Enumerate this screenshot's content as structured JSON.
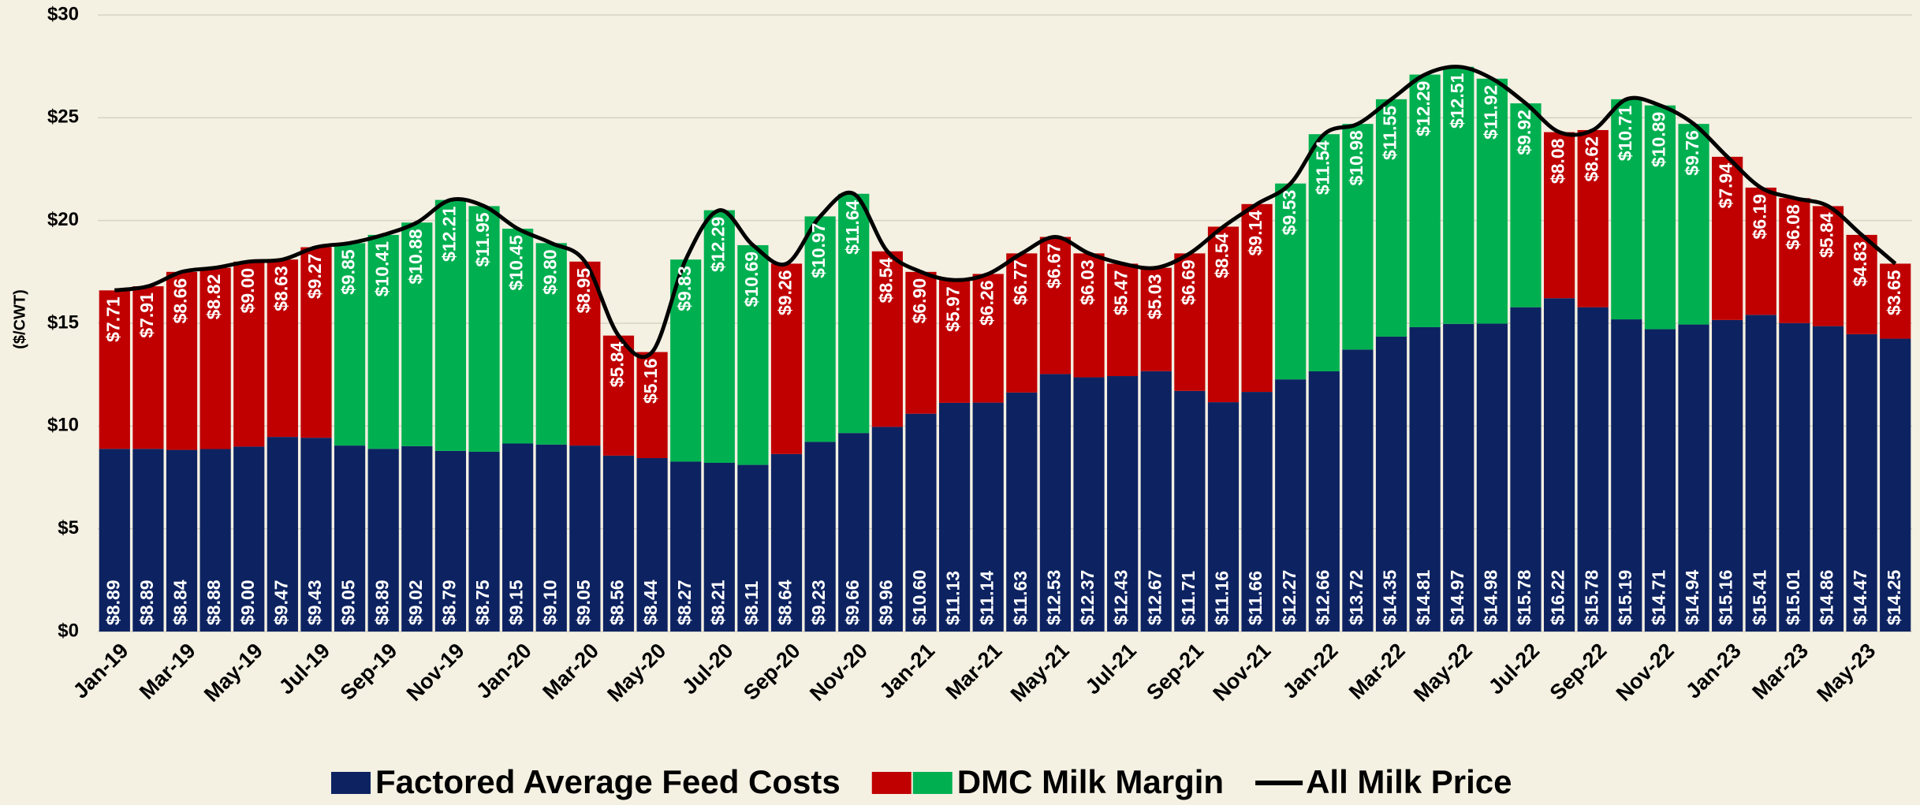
{
  "chart_data": {
    "type": "stacked_bar_line",
    "y_axis_label": "($/CWT)",
    "categories": [
      "Jan-19",
      null,
      "Mar-19",
      null,
      "May-19",
      null,
      "Jul-19",
      null,
      "Sep-19",
      null,
      "Nov-19",
      null,
      "Jan-20",
      null,
      "Mar-20",
      null,
      "May-20",
      null,
      "Jul-20",
      null,
      "Sep-20",
      null,
      "Nov-20",
      null,
      "Jan-21",
      null,
      "Mar-21",
      null,
      "May-21",
      null,
      "Jul-21",
      null,
      "Sep-21",
      null,
      "Nov-21",
      null,
      "Jan-22",
      null,
      "Mar-22",
      null,
      "May-22",
      null,
      "Jul-22",
      null,
      "Sep-22",
      null,
      "Nov-22",
      null,
      "Jan-23",
      null,
      "Mar-23",
      null,
      "May-23",
      null
    ],
    "ylim": [
      0,
      30
    ],
    "yticks": [
      {
        "value": 0,
        "label": "$0"
      },
      {
        "value": 5,
        "label": "$5"
      },
      {
        "value": 10,
        "label": "$10"
      },
      {
        "value": 15,
        "label": "$15"
      },
      {
        "value": 20,
        "label": "$20"
      },
      {
        "value": 25,
        "label": "$25"
      },
      {
        "value": 30,
        "label": "$30"
      }
    ],
    "grid": true,
    "series": [
      {
        "name": "Factored Average Feed Costs",
        "color": "#0d2361",
        "values": [
          8.89,
          8.89,
          8.84,
          8.88,
          9.0,
          9.47,
          9.43,
          9.05,
          8.89,
          9.02,
          8.79,
          8.75,
          9.15,
          9.1,
          9.05,
          8.56,
          8.44,
          8.27,
          8.21,
          8.11,
          8.64,
          9.23,
          9.66,
          9.96,
          10.6,
          11.13,
          11.14,
          11.63,
          12.53,
          12.37,
          12.43,
          12.67,
          11.71,
          11.16,
          11.66,
          12.27,
          12.66,
          13.72,
          14.35,
          14.81,
          14.97,
          14.98,
          15.78,
          16.22,
          15.78,
          15.19,
          14.71,
          14.94,
          15.16,
          15.41,
          15.01,
          14.86,
          14.47,
          14.25
        ],
        "value_labels": [
          "$8.89",
          "$8.89",
          "$8.84",
          "$8.88",
          "$9.00",
          "$9.47",
          "$9.43",
          "$9.05",
          "$8.89",
          "$9.02",
          "$8.79",
          "$8.75",
          "$9.15",
          "$9.10",
          "$9.05",
          "$8.56",
          "$8.44",
          "$8.27",
          "$8.21",
          "$8.11",
          "$8.64",
          "$9.23",
          "$9.66",
          "$9.96",
          "$10.60",
          "$11.13",
          "$11.14",
          "$11.63",
          "$12.53",
          "$12.37",
          "$12.43",
          "$12.67",
          "$11.71",
          "$11.16",
          "$11.66",
          "$12.27",
          "$12.66",
          "$13.72",
          "$14.35",
          "$14.81",
          "$14.97",
          "$14.98",
          "$15.78",
          "$16.22",
          "$15.78",
          "$15.19",
          "$14.71",
          "$14.94",
          "$15.16",
          "$15.41",
          "$15.01",
          "$14.86",
          "$14.47",
          "$14.25"
        ]
      },
      {
        "name": "DMC Milk Margin",
        "legend_colors": [
          "#c00000",
          "#00b050"
        ],
        "colors": [
          "#c00000",
          "#c00000",
          "#c00000",
          "#c00000",
          "#c00000",
          "#c00000",
          "#c00000",
          "#00b050",
          "#00b050",
          "#00b050",
          "#00b050",
          "#00b050",
          "#00b050",
          "#00b050",
          "#c00000",
          "#c00000",
          "#c00000",
          "#00b050",
          "#00b050",
          "#00b050",
          "#c00000",
          "#00b050",
          "#00b050",
          "#c00000",
          "#c00000",
          "#c00000",
          "#c00000",
          "#c00000",
          "#c00000",
          "#c00000",
          "#c00000",
          "#c00000",
          "#c00000",
          "#c00000",
          "#c00000",
          "#00b050",
          "#00b050",
          "#00b050",
          "#00b050",
          "#00b050",
          "#00b050",
          "#00b050",
          "#00b050",
          "#c00000",
          "#c00000",
          "#00b050",
          "#00b050",
          "#00b050",
          "#c00000",
          "#c00000",
          "#c00000",
          "#c00000",
          "#c00000",
          "#c00000"
        ],
        "values": [
          7.71,
          7.91,
          8.66,
          8.82,
          9.0,
          8.63,
          9.27,
          9.85,
          10.41,
          10.88,
          12.21,
          11.95,
          10.45,
          9.8,
          8.95,
          5.84,
          5.16,
          9.83,
          12.29,
          10.69,
          9.26,
          10.97,
          11.64,
          8.54,
          6.9,
          5.97,
          6.26,
          6.77,
          6.67,
          6.03,
          5.47,
          5.03,
          6.69,
          8.54,
          9.14,
          9.53,
          11.54,
          10.98,
          11.55,
          12.29,
          12.51,
          11.92,
          9.92,
          8.08,
          8.62,
          10.71,
          10.89,
          9.76,
          7.94,
          6.19,
          6.08,
          5.84,
          4.83,
          3.65
        ],
        "value_labels": [
          "$7.71",
          "$7.91",
          "$8.66",
          "$8.82",
          "$9.00",
          "$8.63",
          "$9.27",
          "$9.85",
          "$10.41",
          "$10.88",
          "$12.21",
          "$11.95",
          "$10.45",
          "$9.80",
          "$8.95",
          "$5.84",
          "$5.16",
          "$9.83",
          "$12.29",
          "$10.69",
          "$9.26",
          "$10.97",
          "$11.64",
          "$8.54",
          "$6.90",
          "$5.97",
          "$6.26",
          "$6.77",
          "$6.67",
          "$6.03",
          "$5.47",
          "$5.03",
          "$6.69",
          "$8.54",
          "$9.14",
          "$9.53",
          "$11.54",
          "$10.98",
          "$11.55",
          "$12.29",
          "$12.51",
          "$11.92",
          "$9.92",
          "$8.08",
          "$8.62",
          "$10.71",
          "$10.89",
          "$9.76",
          "$7.94",
          "$6.19",
          "$6.08",
          "$5.84",
          "$4.83",
          "$3.65"
        ]
      },
      {
        "name": "All Milk Price",
        "type": "line",
        "color": "#000000",
        "values": [
          16.6,
          16.8,
          17.5,
          17.7,
          18.0,
          18.1,
          18.7,
          18.9,
          19.3,
          19.9,
          21.0,
          20.7,
          19.6,
          18.9,
          18.0,
          14.4,
          13.6,
          18.1,
          20.5,
          18.8,
          17.9,
          20.2,
          21.3,
          18.5,
          17.5,
          17.1,
          17.4,
          18.4,
          19.2,
          18.4,
          17.9,
          17.7,
          18.4,
          19.7,
          20.8,
          21.8,
          24.2,
          24.7,
          25.9,
          27.1,
          27.48,
          26.9,
          25.7,
          24.3,
          24.4,
          25.9,
          25.6,
          24.7,
          23.1,
          21.6,
          21.09,
          20.7,
          19.3,
          17.9
        ]
      }
    ]
  }
}
